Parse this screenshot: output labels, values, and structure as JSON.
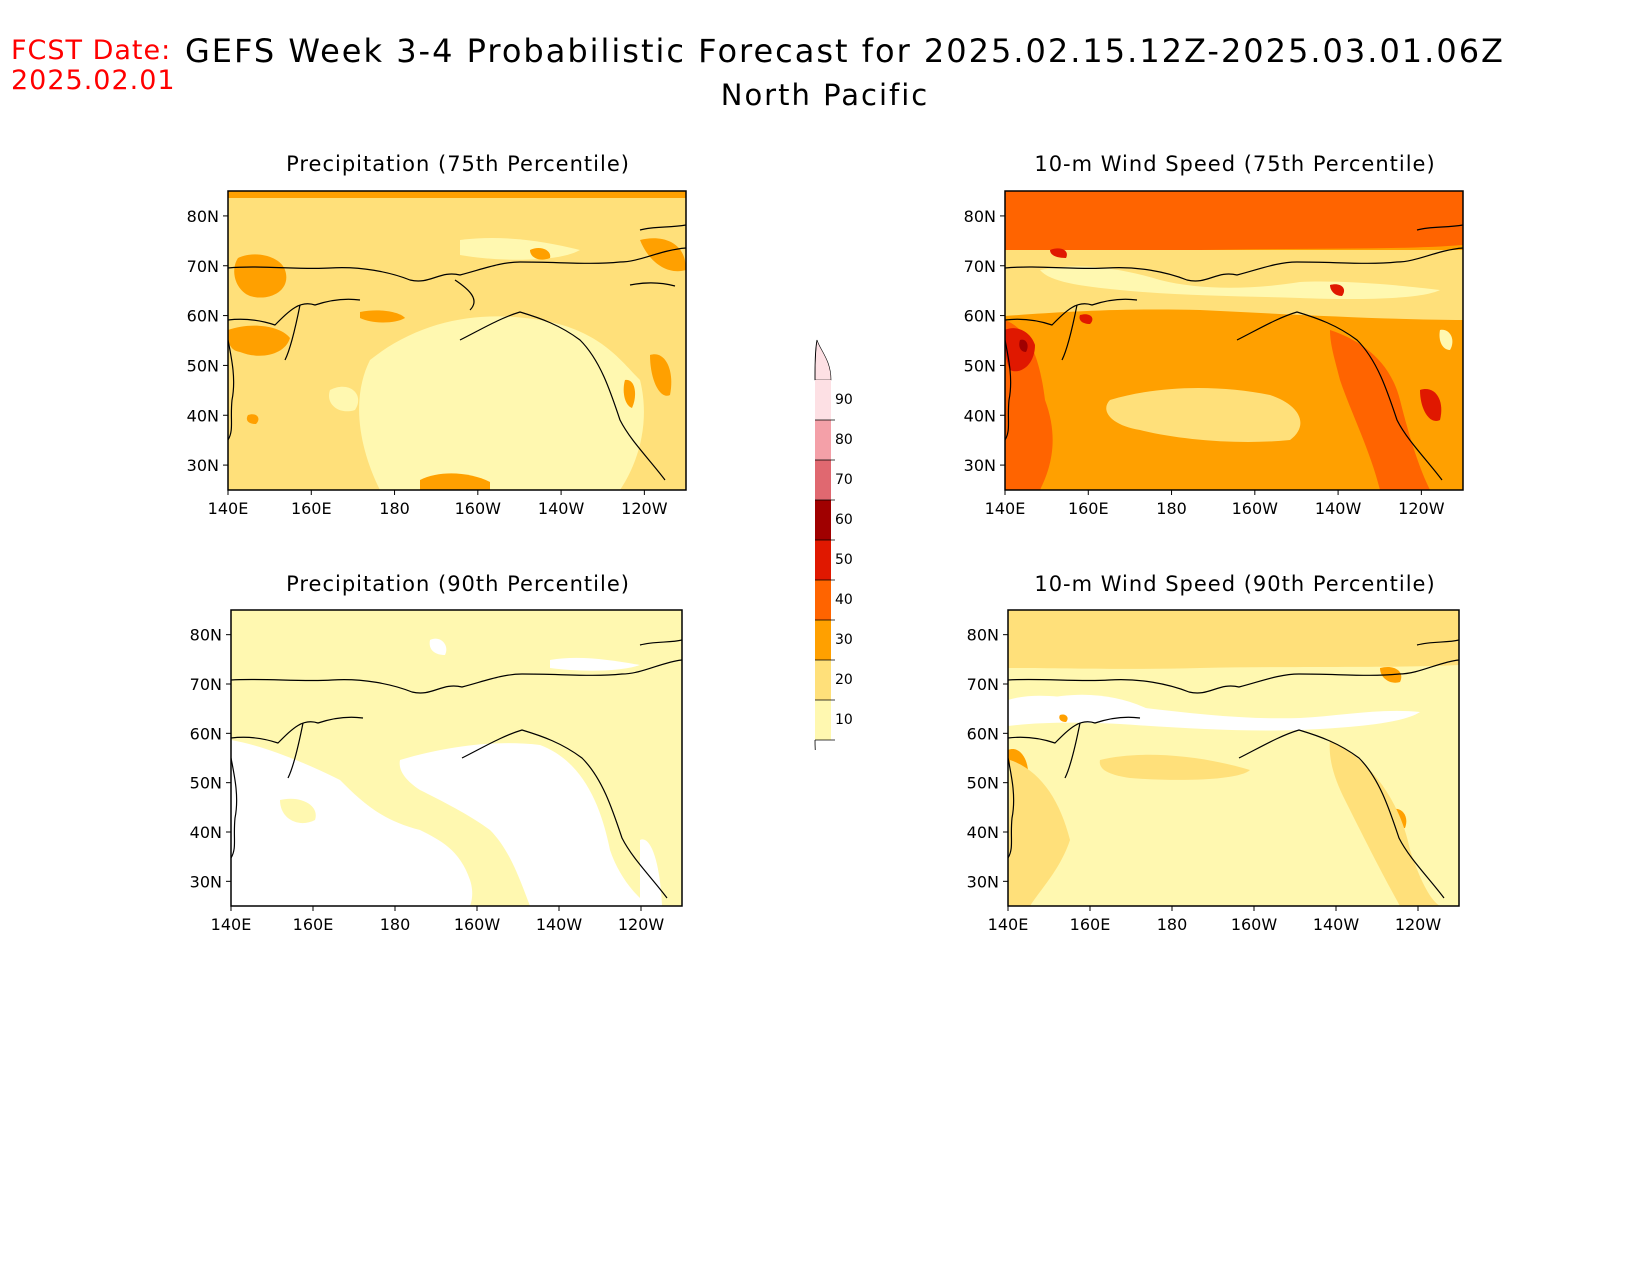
{
  "header": {
    "fcst_label": "FCST Date:",
    "fcst_date": "2025.02.01",
    "title": "GEFS Week 3-4 Probabilistic Forecast for 2025.02.15.12Z-2025.03.01.06Z",
    "subtitle": "North Pacific"
  },
  "axes": {
    "lon_ticks": [
      "140E",
      "160E",
      "180",
      "160W",
      "140W",
      "120W"
    ],
    "lat_ticks": [
      "80N",
      "70N",
      "60N",
      "50N",
      "40N",
      "30N"
    ]
  },
  "panels": [
    {
      "title": "Precipitation (75th Percentile)",
      "dominant_class": "20-30"
    },
    {
      "title": "10-m Wind Speed (75th Percentile)",
      "dominant_class": "30-50"
    },
    {
      "title": "Precipitation (90th Percentile)",
      "dominant_class": "10-20"
    },
    {
      "title": "10-m Wind Speed (90th Percentile)",
      "dominant_class": "10-20"
    }
  ],
  "colorbar": {
    "labels": [
      "90",
      "80",
      "70",
      "60",
      "50",
      "40",
      "30",
      "20",
      "10"
    ],
    "colors": [
      "#fde0e4",
      "#f4a0a8",
      "#e06870",
      "#a00000",
      "#e01800",
      "#ff6400",
      "#ffa000",
      "#ffe07a",
      "#fff8b0"
    ]
  },
  "chart_data": [
    {
      "type": "heatmap",
      "title": "Precipitation (75th Percentile)",
      "levels": [
        10,
        20,
        30,
        40,
        50,
        60,
        70,
        80,
        90
      ]
    },
    {
      "type": "heatmap",
      "title": "10-m Wind Speed (75th Percentile)",
      "levels": [
        10,
        20,
        30,
        40,
        50,
        60,
        70,
        80,
        90
      ]
    },
    {
      "type": "heatmap",
      "title": "Precipitation (90th Percentile)",
      "levels": [
        10,
        20,
        30,
        40,
        50,
        60,
        70,
        80,
        90
      ]
    },
    {
      "type": "heatmap",
      "title": "10-m Wind Speed (90th Percentile)",
      "levels": [
        10,
        20,
        30,
        40,
        50,
        60,
        70,
        80,
        90
      ]
    }
  ]
}
